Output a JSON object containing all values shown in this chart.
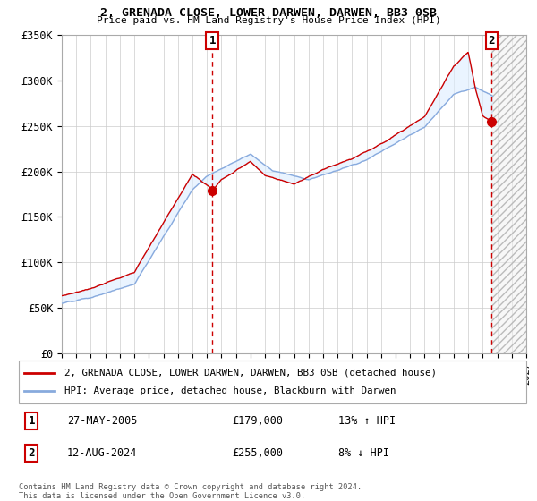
{
  "title": "2, GRENADA CLOSE, LOWER DARWEN, DARWEN, BB3 0SB",
  "subtitle": "Price paid vs. HM Land Registry's House Price Index (HPI)",
  "background_color": "#ffffff",
  "grid_color": "#cccccc",
  "sale1_date": 2005.38,
  "sale1_price": 179000,
  "sale1_pct": "13% ↑ HPI",
  "sale1_date_str": "27-MAY-2005",
  "sale2_date": 2024.62,
  "sale2_price": 255000,
  "sale2_pct": "8% ↓ HPI",
  "sale2_date_str": "12-AUG-2024",
  "xmin": 1995,
  "xmax": 2027,
  "ymin": 0,
  "ymax": 350000,
  "yticks": [
    0,
    50000,
    100000,
    150000,
    200000,
    250000,
    300000,
    350000
  ],
  "ytick_labels": [
    "£0",
    "£50K",
    "£100K",
    "£150K",
    "£200K",
    "£250K",
    "£300K",
    "£350K"
  ],
  "legend_line1": "2, GRENADA CLOSE, LOWER DARWEN, DARWEN, BB3 0SB (detached house)",
  "legend_line2": "HPI: Average price, detached house, Blackburn with Darwen",
  "footnote": "Contains HM Land Registry data © Crown copyright and database right 2024.\nThis data is licensed under the Open Government Licence v3.0.",
  "line_color_red": "#cc0000",
  "line_color_blue": "#88aadd",
  "fill_color_blue": "#ddeeff",
  "hatch_color": "#cccccc",
  "sale_marker_color": "#cc0000",
  "dashed_line_color": "#cc0000"
}
